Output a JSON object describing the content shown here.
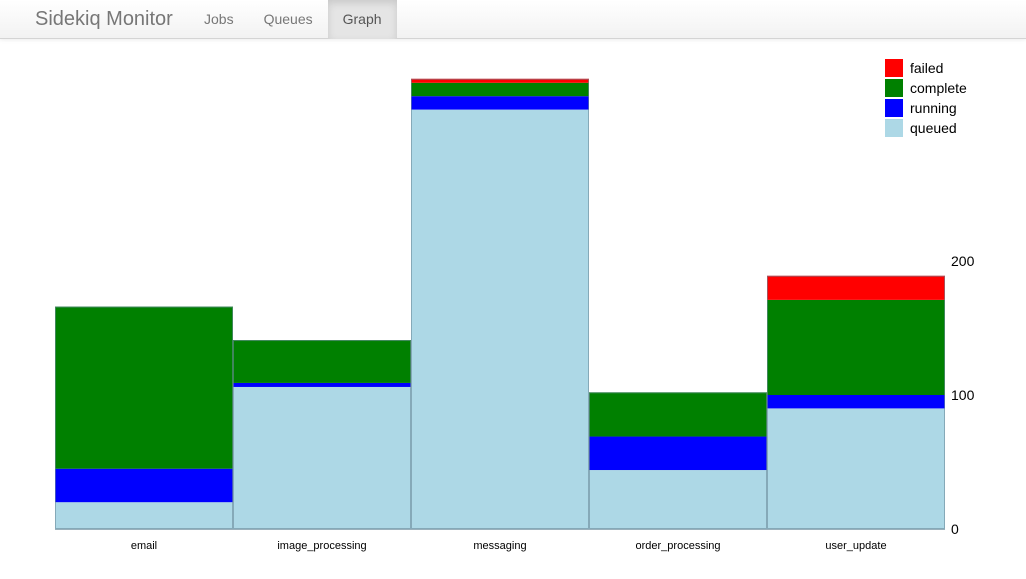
{
  "navbar": {
    "brand": "Sidekiq Monitor",
    "items": [
      {
        "label": "Jobs",
        "active": false
      },
      {
        "label": "Queues",
        "active": false
      },
      {
        "label": "Graph",
        "active": true
      }
    ]
  },
  "chart_data": {
    "type": "bar",
    "stacked": true,
    "categories": [
      "email",
      "image_processing",
      "messaging",
      "order_processing",
      "user_update"
    ],
    "series": [
      {
        "name": "queued",
        "color": "#add8e6",
        "values": [
          20,
          106,
          313,
          44,
          90
        ]
      },
      {
        "name": "running",
        "color": "#0000ff",
        "values": [
          25,
          3,
          10,
          25,
          10
        ]
      },
      {
        "name": "complete",
        "color": "#008000",
        "values": [
          121,
          32,
          10,
          33,
          71
        ]
      },
      {
        "name": "failed",
        "color": "#ff0000",
        "values": [
          0,
          0,
          3,
          0,
          18
        ]
      }
    ],
    "legend_order": [
      "failed",
      "complete",
      "running",
      "queued"
    ],
    "legend_position": "top-right",
    "y_axis_position": "right",
    "yticks": [
      0,
      100,
      200
    ],
    "ylim": [
      0,
      336
    ],
    "grid": false
  }
}
